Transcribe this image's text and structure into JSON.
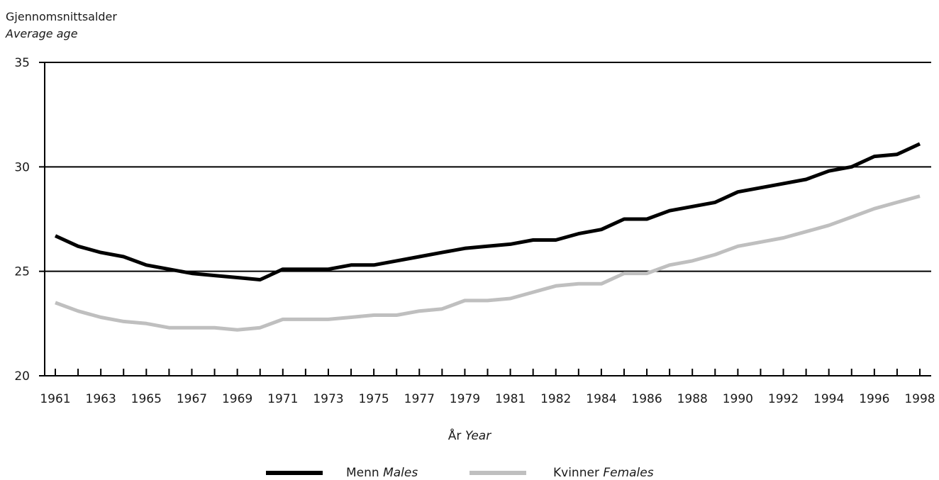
{
  "chart_data": {
    "type": "line",
    "ylabel_main": "Gjennomsnittsalder",
    "ylabel_sub": "Average age",
    "xlabel_main": "År",
    "xlabel_sub": "Year",
    "ylim": [
      20,
      35
    ],
    "yticks": [
      20,
      25,
      30,
      35
    ],
    "ytick_labels": [
      "20",
      "25",
      "30",
      "35"
    ],
    "grid": "horizontal",
    "x": [
      "1961",
      "1962",
      "1963",
      "1964",
      "1965",
      "1966",
      "1967",
      "1968",
      "1969",
      "1970",
      "1971",
      "1972",
      "1973",
      "1974",
      "1975",
      "1976",
      "1977",
      "1978",
      "1979",
      "1980",
      "1981",
      "1981",
      "1982",
      "1983",
      "1984",
      "1985",
      "1986",
      "1987",
      "1988",
      "1989",
      "1990",
      "1991",
      "1992",
      "1993",
      "1994",
      "1995",
      "1996",
      "1997",
      "1998"
    ],
    "x_tick_labels": [
      "1961",
      "1963",
      "1965",
      "1967",
      "1969",
      "1971",
      "1973",
      "1975",
      "1977",
      "1979",
      "1981",
      "1982",
      "1984",
      "1986",
      "1988",
      "1990",
      "1992",
      "1994",
      "1996",
      "1998"
    ],
    "series": [
      {
        "name": "Menn",
        "name_en": "Males",
        "color": "#000000",
        "values": [
          26.7,
          26.2,
          25.9,
          25.7,
          25.3,
          25.1,
          24.9,
          24.8,
          24.7,
          24.6,
          25.1,
          25.1,
          25.1,
          25.3,
          25.3,
          25.5,
          25.7,
          25.9,
          26.1,
          26.2,
          26.3,
          26.5,
          26.5,
          26.8,
          27.0,
          27.5,
          27.5,
          27.9,
          28.1,
          28.3,
          28.8,
          29.0,
          29.2,
          29.4,
          29.8,
          30.0,
          30.5,
          30.6,
          31.1
        ]
      },
      {
        "name": "Kvinner",
        "name_en": "Females",
        "color": "#bfbfbf",
        "values": [
          23.5,
          23.1,
          22.8,
          22.6,
          22.5,
          22.3,
          22.3,
          22.3,
          22.2,
          22.3,
          22.7,
          22.7,
          22.7,
          22.8,
          22.9,
          22.9,
          23.1,
          23.2,
          23.6,
          23.6,
          23.7,
          24.0,
          24.3,
          24.4,
          24.4,
          24.9,
          24.9,
          25.3,
          25.5,
          25.8,
          26.2,
          26.4,
          26.6,
          26.9,
          27.2,
          27.6,
          28.0,
          28.3,
          28.6
        ]
      }
    ],
    "legend_placement": "bottom-center"
  }
}
